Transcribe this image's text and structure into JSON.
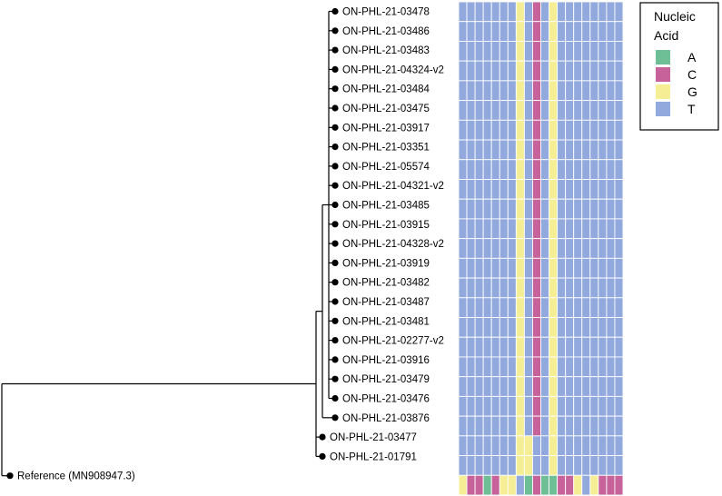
{
  "chart_data": {
    "type": "heatmap",
    "title": "",
    "description_type": "phylogenetic tree with nucleotide alignment heatmap",
    "legend": {
      "title_lines": [
        "Nucleic",
        "Acid"
      ],
      "entries": [
        {
          "label": "A",
          "color": "#6fbf96"
        },
        {
          "label": "C",
          "color": "#c7629b"
        },
        {
          "label": "G",
          "color": "#f5ee95"
        },
        {
          "label": "T",
          "color": "#91a9dd"
        }
      ],
      "placement": "top-right"
    },
    "tree": {
      "branch_lengths": {
        "root_to_reference": 0,
        "root_to_ingroup": 1.0,
        "ingroup_to_03477": 0.02,
        "ingroup_to_01791": 0.02,
        "ingroup_to_cladeA": 0.02,
        "cladeA_to_03876": 0.02,
        "cladeA_to_cladeB": 0.02,
        "cladeB_to_tips": 0.02
      }
    },
    "taxa": [
      "ON-PHL-21-03478",
      "ON-PHL-21-03486",
      "ON-PHL-21-03483",
      "ON-PHL-21-04324-v2",
      "ON-PHL-21-03484",
      "ON-PHL-21-03475",
      "ON-PHL-21-03917",
      "ON-PHL-21-03351",
      "ON-PHL-21-05574",
      "ON-PHL-21-04321-v2",
      "ON-PHL-21-03485",
      "ON-PHL-21-03915",
      "ON-PHL-21-04328-v2",
      "ON-PHL-21-03919",
      "ON-PHL-21-03482",
      "ON-PHL-21-03487",
      "ON-PHL-21-03481",
      "ON-PHL-21-02277-v2",
      "ON-PHL-21-03916",
      "ON-PHL-21-03479",
      "ON-PHL-21-03476",
      "ON-PHL-21-03876",
      "ON-PHL-21-03477",
      "ON-PHL-21-01791",
      "Reference (MN908947.3)"
    ],
    "alignment": [
      "TTTTTTTGTCTGTTTTTTTT",
      "TTTTTTTGTCTGTTTTTTTT",
      "TTTTTTTGTCTGTTTTTTTT",
      "TTTTTTTGTCTGTTTTTTTT",
      "TTTTTTTGTCTGTTTTTTTT",
      "TTTTTTTGTCTGTTTTTTTT",
      "TTTTTTTGTCTGTTTTTTTT",
      "TTTTTTTGTCTGTTTTTTTT",
      "TTTTTTTGTCTGTTTTTTTT",
      "TTTTTTTGTCTGTTTTTTTT",
      "TTTTTTTGTCTGTTTTTTTT",
      "TTTTTTTGTCTGTTTTTTTT",
      "TTTTTTTGTCTGTTTTTTTT",
      "TTTTTTTGTCTGTTTTTTTT",
      "TTTTTTTGTCTGTTTTTTTT",
      "TTTTTTTGTCTGTTTTTTTT",
      "TTTTTTTGTCTGTTTTTTTT",
      "TTTTTTTGTCTGTTTTTTTT",
      "TTTTTTTGTCTGTTTTTTTT",
      "TTTTTTTGTCTGTTTTTTTT",
      "TTTTTTTGTCTGTTTTTTTT",
      "TTTTTTTGTCTGTTTTTTTT",
      "TTTTTTTGGTTGTTTTTTTT",
      "TTTTTTTGGTTGTTTTTTTT",
      "GCCACGGTACAACCGTGCCC"
    ]
  }
}
